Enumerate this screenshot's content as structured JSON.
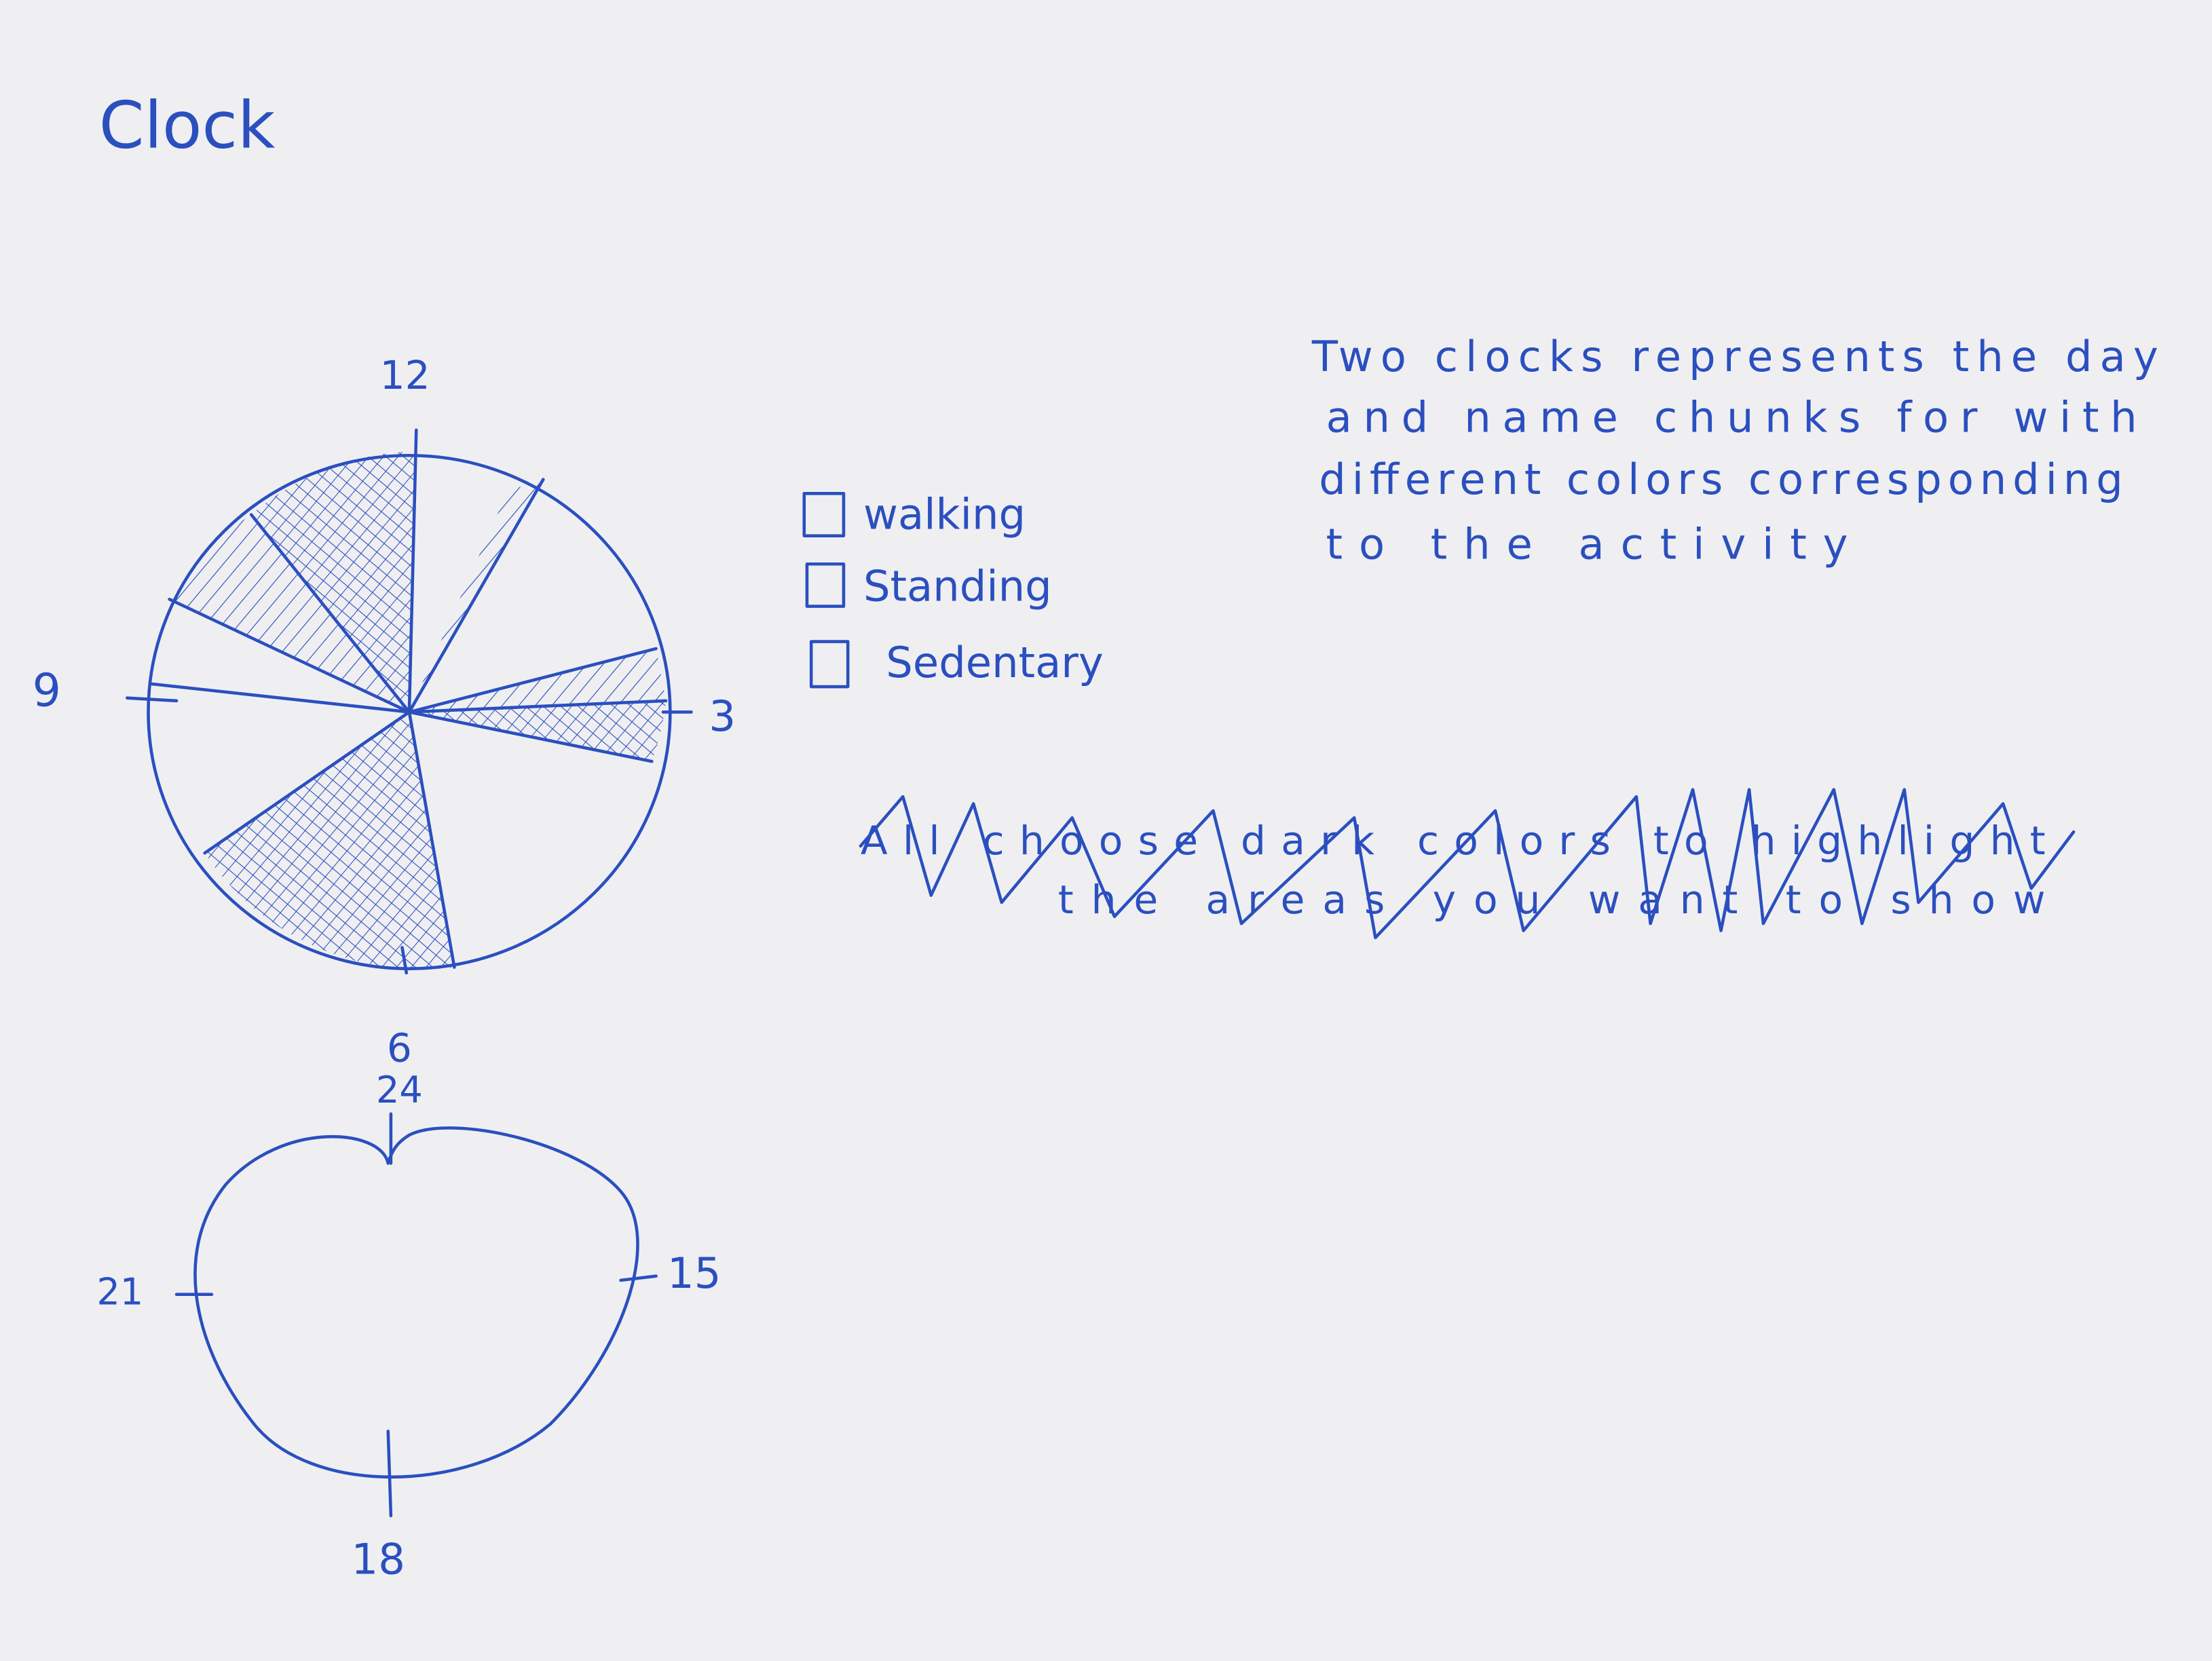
{
  "title": "Clock",
  "clock_1": {
    "labels": [
      "12",
      "3",
      "6",
      "9"
    ]
  },
  "legend": {
    "items": [
      "walking",
      "Standing",
      "Sedentary"
    ]
  },
  "note": {
    "lines": [
      "Two clocks represents the day",
      "and name chunks for with",
      "different colors corresponding",
      "to the activity"
    ]
  },
  "crossed_out_note": {
    "lines": [
      "All choose dark colors to highlight",
      "the areas you want to show"
    ]
  },
  "clock_2": {
    "labels": [
      "24",
      "15",
      "18",
      "21"
    ]
  }
}
